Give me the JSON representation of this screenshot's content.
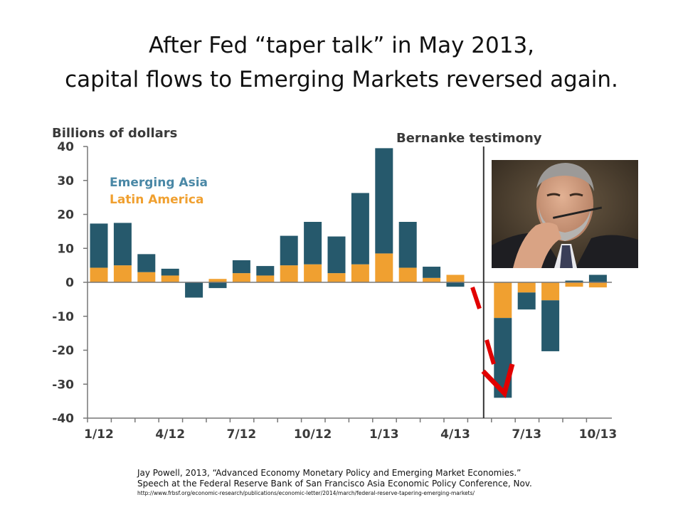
{
  "slide": {
    "title_line1": "After Fed “taper talk” in May 2013,",
    "title_line2": "capital flows to Emerging Markets reversed again."
  },
  "chart_data": {
    "type": "bar",
    "stacked": true,
    "ylabel": "Billions of dollars",
    "ylim": [
      -40,
      40
    ],
    "yticks": [
      40,
      30,
      20,
      10,
      0,
      -10,
      -20,
      -30,
      -40
    ],
    "xtick_labels": [
      "1/12",
      "4/12",
      "7/12",
      "10/12",
      "1/13",
      "4/13",
      "7/13",
      "10/13"
    ],
    "x": [
      "1/12",
      "2/12",
      "3/12",
      "4/12",
      "5/12",
      "6/12",
      "7/12",
      "8/12",
      "9/12",
      "10/12",
      "11/12",
      "12/12",
      "1/13",
      "2/13",
      "3/13",
      "4/13",
      "5/13",
      "6/13",
      "7/13",
      "8/13",
      "9/13",
      "10/13"
    ],
    "series": [
      {
        "name": "Emerging Asia",
        "color": "#26596c",
        "values": [
          13,
          12.5,
          5.3,
          2,
          -4.5,
          -1.7,
          3.8,
          2.8,
          8.7,
          12.5,
          10.8,
          21,
          31,
          13.5,
          3.3,
          -1.3,
          0,
          -23.5,
          -5,
          -15,
          0.5,
          2.2
        ]
      },
      {
        "name": "Latin America",
        "color": "#f0a030",
        "values": [
          4.3,
          5,
          3,
          2,
          0,
          1,
          2.7,
          2,
          5,
          5.3,
          2.7,
          5.3,
          8.5,
          4.3,
          1.3,
          2.2,
          0,
          -10.5,
          -3,
          -5.3,
          -1.3,
          -1.5
        ]
      }
    ],
    "annotations": [
      "Bernanke testimony"
    ],
    "vline_after": "5/13",
    "grid": false,
    "legend": "top-left"
  },
  "photo": {
    "icon": "portrait-photo"
  },
  "citation": {
    "line1": "Jay Powell, 2013, “Advanced Economy Monetary Policy and Emerging Market Economies.”",
    "line2": "Speech at the Federal Reserve Bank of San Francisco Asia Economic Policy Conference, Nov.",
    "line3": "http://www.frbsf.org/economic-research/publications/economic-letter/2014/march/federal-reserve-tapering-emerging-markets/"
  }
}
